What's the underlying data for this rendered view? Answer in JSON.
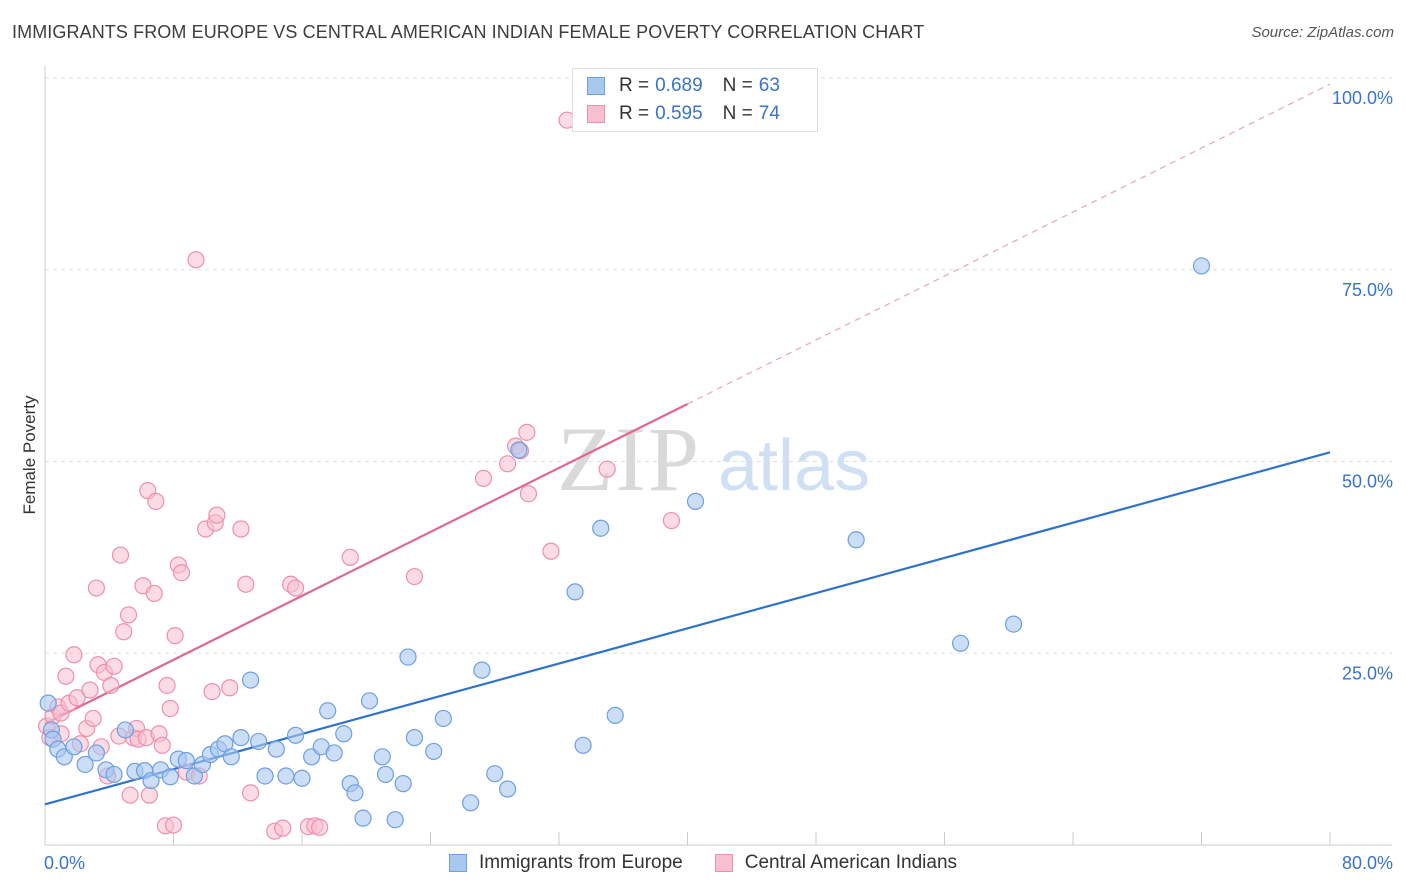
{
  "header": {
    "title": "IMMIGRANTS FROM EUROPE VS CENTRAL AMERICAN INDIAN FEMALE POVERTY CORRELATION CHART",
    "source": "Source: ZipAtlas.com"
  },
  "watermark": {
    "zip": "ZIP",
    "atlas": "atlas"
  },
  "legend": {
    "europe": {
      "r_label": "R =",
      "r_value": "0.689",
      "n_label": "N =",
      "n_value": "63"
    },
    "cai": {
      "r_label": "R =",
      "r_value": "0.595",
      "n_label": "N =",
      "n_value": "74"
    }
  },
  "bottom_legend": {
    "europe": "Immigrants from Europe",
    "cai": "Central American Indians"
  },
  "colors": {
    "europe_fill": "#a9c8f0",
    "europe_stroke": "#6e9fe0",
    "europe_line": "#2f72cc",
    "cai_fill": "#f7bfd0",
    "cai_stroke": "#ee8fae",
    "cai_line": "#e0678f",
    "tick": "#3a73c8",
    "grid": "#dedede"
  },
  "chart_data": {
    "type": "scatter",
    "title": "IMMIGRANTS FROM EUROPE VS CENTRAL AMERICAN INDIAN FEMALE POVERTY CORRELATION CHART",
    "xlabel": "",
    "ylabel": "Female Poverty",
    "xlim": [
      0,
      80
    ],
    "ylim": [
      0,
      100
    ],
    "x_ticks": [
      "0.0%",
      "80.0%"
    ],
    "y_ticks": [
      "25.0%",
      "50.0%",
      "75.0%",
      "100.0%"
    ],
    "y_tick_values": [
      25,
      50,
      75,
      100
    ],
    "grid": true,
    "legend_placement": "top-center",
    "series": [
      {
        "name": "Immigrants from Europe",
        "R": 0.689,
        "N": 63,
        "trend": {
          "x": [
            0,
            80
          ],
          "y": [
            5.3,
            51.2
          ]
        },
        "points": [
          [
            0.2,
            18.5
          ],
          [
            0.4,
            15.0
          ],
          [
            0.5,
            13.8
          ],
          [
            0.8,
            12.5
          ],
          [
            1.2,
            11.5
          ],
          [
            1.8,
            12.8
          ],
          [
            2.5,
            10.5
          ],
          [
            3.2,
            12.0
          ],
          [
            3.8,
            9.8
          ],
          [
            4.3,
            9.2
          ],
          [
            5.0,
            15.0
          ],
          [
            5.6,
            9.6
          ],
          [
            6.2,
            9.7
          ],
          [
            6.6,
            8.4
          ],
          [
            7.2,
            9.8
          ],
          [
            7.8,
            8.9
          ],
          [
            8.3,
            11.2
          ],
          [
            8.8,
            11.0
          ],
          [
            9.3,
            9.0
          ],
          [
            9.8,
            10.5
          ],
          [
            10.3,
            11.8
          ],
          [
            10.8,
            12.5
          ],
          [
            11.2,
            13.2
          ],
          [
            11.6,
            11.5
          ],
          [
            12.2,
            14.0
          ],
          [
            12.8,
            21.5
          ],
          [
            13.3,
            13.5
          ],
          [
            13.7,
            9.0
          ],
          [
            14.4,
            12.5
          ],
          [
            15.0,
            9.0
          ],
          [
            15.6,
            14.3
          ],
          [
            16.0,
            8.7
          ],
          [
            16.6,
            11.5
          ],
          [
            17.2,
            12.8
          ],
          [
            17.6,
            17.5
          ],
          [
            18.0,
            12.0
          ],
          [
            18.6,
            14.5
          ],
          [
            19.0,
            8.0
          ],
          [
            19.3,
            6.8
          ],
          [
            19.8,
            3.5
          ],
          [
            20.2,
            18.8
          ],
          [
            21.0,
            11.5
          ],
          [
            21.2,
            9.2
          ],
          [
            21.8,
            3.3
          ],
          [
            22.3,
            8.0
          ],
          [
            22.6,
            24.5
          ],
          [
            23.0,
            14.0
          ],
          [
            24.2,
            12.2
          ],
          [
            24.8,
            16.5
          ],
          [
            26.5,
            5.5
          ],
          [
            27.2,
            22.8
          ],
          [
            28.0,
            9.3
          ],
          [
            28.8,
            7.3
          ],
          [
            29.5,
            51.5
          ],
          [
            33.0,
            33.0
          ],
          [
            33.5,
            13.0
          ],
          [
            34.6,
            41.3
          ],
          [
            35.5,
            16.9
          ],
          [
            40.5,
            44.8
          ],
          [
            50.5,
            39.8
          ],
          [
            57.0,
            26.3
          ],
          [
            60.3,
            28.8
          ],
          [
            72.0,
            75.5
          ]
        ]
      },
      {
        "name": "Central American Indians",
        "R": 0.595,
        "N": 74,
        "trend": {
          "x": [
            0,
            40
          ],
          "y": [
            15.8,
            57.5
          ]
        },
        "trend_extension": {
          "x": [
            40,
            80
          ],
          "y": [
            57.5,
            99.2
          ]
        },
        "points": [
          [
            0.1,
            15.5
          ],
          [
            0.3,
            14.0
          ],
          [
            0.5,
            16.8
          ],
          [
            0.8,
            18.0
          ],
          [
            1.0,
            17.2
          ],
          [
            1.3,
            22.0
          ],
          [
            1.5,
            18.5
          ],
          [
            1.8,
            24.8
          ],
          [
            2.0,
            19.2
          ],
          [
            2.2,
            13.2
          ],
          [
            2.6,
            15.2
          ],
          [
            2.8,
            20.2
          ],
          [
            3.0,
            16.5
          ],
          [
            3.2,
            33.5
          ],
          [
            3.3,
            23.5
          ],
          [
            3.5,
            12.8
          ],
          [
            3.7,
            22.5
          ],
          [
            3.9,
            9.0
          ],
          [
            4.1,
            20.8
          ],
          [
            4.3,
            23.3
          ],
          [
            4.6,
            14.2
          ],
          [
            4.7,
            37.8
          ],
          [
            4.9,
            27.8
          ],
          [
            5.2,
            30.0
          ],
          [
            5.3,
            6.5
          ],
          [
            5.5,
            14.0
          ],
          [
            5.7,
            15.2
          ],
          [
            5.8,
            13.8
          ],
          [
            6.1,
            33.8
          ],
          [
            6.3,
            14.0
          ],
          [
            6.4,
            46.2
          ],
          [
            6.5,
            6.5
          ],
          [
            6.8,
            32.8
          ],
          [
            6.9,
            44.8
          ],
          [
            7.1,
            14.5
          ],
          [
            7.3,
            13.0
          ],
          [
            7.5,
            2.5
          ],
          [
            7.6,
            20.8
          ],
          [
            7.8,
            17.8
          ],
          [
            8.0,
            2.6
          ],
          [
            8.1,
            27.3
          ],
          [
            8.3,
            36.5
          ],
          [
            8.5,
            35.5
          ],
          [
            8.8,
            9.5
          ],
          [
            9.4,
            76.3
          ],
          [
            9.6,
            9.0
          ],
          [
            10.0,
            41.2
          ],
          [
            10.4,
            20.0
          ],
          [
            10.6,
            42.0
          ],
          [
            10.7,
            43.0
          ],
          [
            11.5,
            20.5
          ],
          [
            12.2,
            41.2
          ],
          [
            12.5,
            34.0
          ],
          [
            12.8,
            6.8
          ],
          [
            14.3,
            1.8
          ],
          [
            14.8,
            2.2
          ],
          [
            15.3,
            34.0
          ],
          [
            15.6,
            33.5
          ],
          [
            16.4,
            2.4
          ],
          [
            16.8,
            2.5
          ],
          [
            17.1,
            2.3
          ],
          [
            19.0,
            37.5
          ],
          [
            23.0,
            35.0
          ],
          [
            27.3,
            47.8
          ],
          [
            28.8,
            49.7
          ],
          [
            29.3,
            52.0
          ],
          [
            29.6,
            51.4
          ],
          [
            30.0,
            53.8
          ],
          [
            30.1,
            45.8
          ],
          [
            31.5,
            38.3
          ],
          [
            32.5,
            94.5
          ],
          [
            35.0,
            49.0
          ],
          [
            39.0,
            42.3
          ],
          [
            1.0,
            14.5
          ]
        ]
      }
    ]
  }
}
